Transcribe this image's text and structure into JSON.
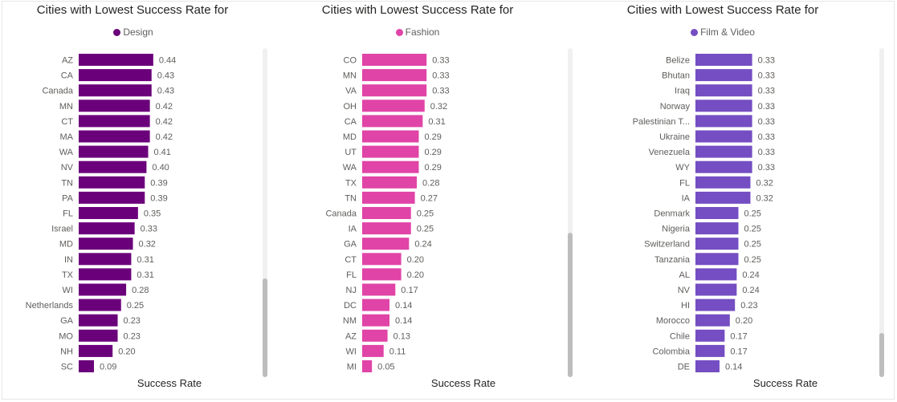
{
  "chart_data": [
    {
      "type": "bar",
      "orientation": "horizontal",
      "title": "Cities with Lowest Success Rate for",
      "legend": "Design",
      "color": "#6b007b",
      "xlabel": "Success Rate",
      "ylabel": "",
      "categories": [
        "AZ",
        "CA",
        "Canada",
        "MN",
        "CT",
        "MA",
        "WA",
        "NV",
        "TN",
        "PA",
        "FL",
        "Israel",
        "MD",
        "IN",
        "TX",
        "WI",
        "Netherlands",
        "GA",
        "MO",
        "NH",
        "SC"
      ],
      "values": [
        0.44,
        0.43,
        0.43,
        0.42,
        0.42,
        0.42,
        0.41,
        0.4,
        0.39,
        0.39,
        0.35,
        0.33,
        0.32,
        0.31,
        0.31,
        0.28,
        0.25,
        0.23,
        0.23,
        0.2,
        0.09
      ],
      "value_labels": [
        "0.44",
        "0.43",
        "0.43",
        "0.42",
        "0.42",
        "0.42",
        "0.41",
        "0.40",
        "0.39",
        "0.39",
        "0.35",
        "0.33",
        "0.32",
        "0.31",
        "0.31",
        "0.28",
        "0.25",
        "0.23",
        "0.23",
        "0.20",
        "0.09"
      ],
      "xlim": [
        0,
        0.5
      ],
      "grid": false,
      "scroll_position": 0.85
    },
    {
      "type": "bar",
      "orientation": "horizontal",
      "title": "Cities with Lowest Success Rate for",
      "legend": "Fashion",
      "color": "#e044a7",
      "xlabel": "Success Rate",
      "ylabel": "",
      "categories": [
        "CO",
        "MN",
        "VA",
        "OH",
        "CA",
        "MD",
        "UT",
        "WA",
        "TX",
        "TN",
        "Canada",
        "IA",
        "GA",
        "CT",
        "FL",
        "NJ",
        "DC",
        "NM",
        "AZ",
        "WI",
        "MI"
      ],
      "values": [
        0.33,
        0.33,
        0.33,
        0.32,
        0.31,
        0.29,
        0.29,
        0.29,
        0.28,
        0.27,
        0.25,
        0.25,
        0.24,
        0.2,
        0.2,
        0.17,
        0.14,
        0.14,
        0.13,
        0.11,
        0.05
      ],
      "value_labels": [
        "0.33",
        "0.33",
        "0.33",
        "0.32",
        "0.31",
        "0.29",
        "0.29",
        "0.29",
        "0.28",
        "0.27",
        "0.25",
        "0.25",
        "0.24",
        "0.20",
        "0.20",
        "0.17",
        "0.14",
        "0.14",
        "0.13",
        "0.11",
        "0.05"
      ],
      "xlim": [
        0,
        0.5
      ],
      "grid": false,
      "scroll_position": 0.55
    },
    {
      "type": "bar",
      "orientation": "horizontal",
      "title": "Cities with Lowest Success Rate for",
      "legend": "Film & Video",
      "color": "#744ec2",
      "xlabel": "Success Rate",
      "ylabel": "",
      "categories": [
        "Belize",
        "Bhutan",
        "Iraq",
        "Norway",
        "Palestinian T...",
        "Ukraine",
        "Venezuela",
        "WY",
        "FL",
        "IA",
        "Denmark",
        "Nigeria",
        "Switzerland",
        "Tanzania",
        "AL",
        "NV",
        "HI",
        "Morocco",
        "Chile",
        "Colombia",
        "DE"
      ],
      "values": [
        0.33,
        0.33,
        0.33,
        0.33,
        0.33,
        0.33,
        0.33,
        0.33,
        0.32,
        0.32,
        0.25,
        0.25,
        0.25,
        0.25,
        0.24,
        0.24,
        0.23,
        0.2,
        0.17,
        0.17,
        0.14
      ],
      "value_labels": [
        "0.33",
        "0.33",
        "0.33",
        "0.33",
        "0.33",
        "0.33",
        "0.33",
        "0.33",
        "0.32",
        "0.32",
        "0.25",
        "0.25",
        "0.25",
        "0.25",
        "0.24",
        "0.24",
        "0.23",
        "0.20",
        "0.17",
        "0.17",
        "0.14"
      ],
      "xlim": [
        0,
        0.5
      ],
      "grid": false,
      "scroll_position": 0.95
    }
  ]
}
